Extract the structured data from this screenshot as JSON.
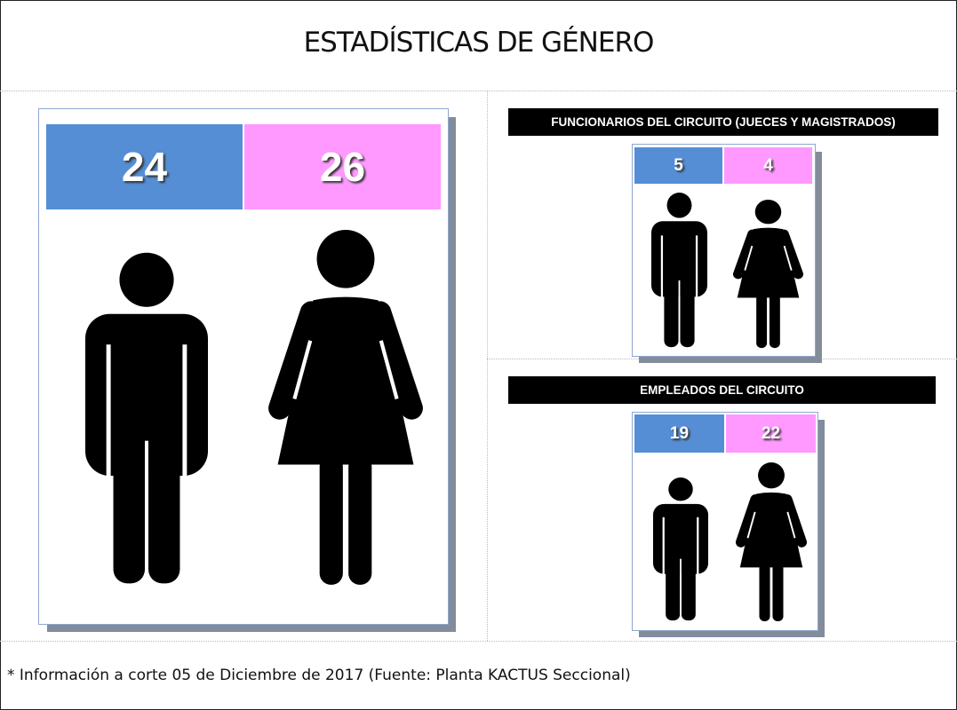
{
  "title": "ESTADÍSTICAS DE GÉNERO",
  "colors": {
    "men": "#558ed5",
    "women": "#ff99ff"
  },
  "total": {
    "men": "24",
    "women": "26"
  },
  "funcionarios": {
    "title": "FUNCIONARIOS DEL CIRCUITO (JUECES Y MAGISTRADOS)",
    "men": "5",
    "women": "4"
  },
  "empleados": {
    "title": "EMPLEADOS DEL CIRCUITO",
    "men": "19",
    "women": "22"
  },
  "footnote": "* Información a corte 05 de Diciembre de 2017 (Fuente: Planta KACTUS Seccional)",
  "icons": [
    "man-icon",
    "woman-icon"
  ]
}
